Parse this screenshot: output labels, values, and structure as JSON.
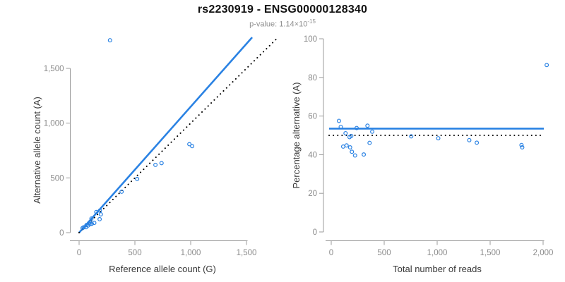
{
  "header": {
    "title": "rs2230919 - ENSG00000128340",
    "pvalue_prefix": "p-value: ",
    "pvalue_mantissa": "1.14",
    "pvalue_times": "×",
    "pvalue_base": "10",
    "pvalue_exponent": "-15"
  },
  "colors": {
    "point_blue": "#2a82e3",
    "line_blue": "#2a82e3",
    "reference_black": "#000000",
    "axis_line_gray": "#9b9b9b",
    "tick_label_gray": "#8a8a8a",
    "axis_title_gray": "#383838"
  },
  "chart_data": [
    {
      "type": "scatter",
      "name": "allele-count-scatter",
      "xlabel": "Reference allele count (G)",
      "ylabel": "Alternative allele count (A)",
      "xlim": [
        0,
        1500
      ],
      "ylim": [
        0,
        1500
      ],
      "grid": false,
      "legend": "none",
      "xticks": {
        "values": [
          0,
          500,
          1000,
          1500
        ],
        "labels": [
          "0",
          "500",
          "1,000",
          "1,500"
        ]
      },
      "yticks": {
        "values": [
          0,
          500,
          1000,
          1500
        ],
        "labels": [
          "0",
          "500",
          "1,000",
          "1,500"
        ]
      },
      "points": [
        {
          "x": 31,
          "y": 42
        },
        {
          "x": 41,
          "y": 49
        },
        {
          "x": 63,
          "y": 50
        },
        {
          "x": 66,
          "y": 69
        },
        {
          "x": 80,
          "y": 65
        },
        {
          "x": 88,
          "y": 85
        },
        {
          "x": 95,
          "y": 94
        },
        {
          "x": 100,
          "y": 78
        },
        {
          "x": 111,
          "y": 129
        },
        {
          "x": 114,
          "y": 81
        },
        {
          "x": 136,
          "y": 89
        },
        {
          "x": 154,
          "y": 188
        },
        {
          "x": 184,
          "y": 123
        },
        {
          "x": 186,
          "y": 201
        },
        {
          "x": 195,
          "y": 167
        },
        {
          "x": 277,
          "y": 1757
        },
        {
          "x": 381,
          "y": 374
        },
        {
          "x": 520,
          "y": 490
        },
        {
          "x": 684,
          "y": 619
        },
        {
          "x": 739,
          "y": 635
        },
        {
          "x": 988,
          "y": 808
        },
        {
          "x": 1013,
          "y": 790
        }
      ],
      "lines": [
        {
          "name": "fitted-ratio-line",
          "style": "solid",
          "slope": 1.15,
          "intercept": 0,
          "color": "#2a82e3"
        },
        {
          "name": "identity-line",
          "style": "dotted",
          "slope": 1,
          "intercept": 0,
          "color": "#000000"
        }
      ]
    },
    {
      "type": "scatter",
      "name": "percentage-vs-reads-scatter",
      "xlabel": "Total number of reads",
      "ylabel": "Percentage alternative (A)",
      "xlim": [
        0,
        2000
      ],
      "ylim": [
        0,
        100
      ],
      "grid": false,
      "legend": "none",
      "xticks": {
        "values": [
          0,
          500,
          1000,
          1500,
          2000
        ],
        "labels": [
          "0",
          "500",
          "1,000",
          "1,500",
          "2,000"
        ]
      },
      "yticks": {
        "values": [
          0,
          20,
          40,
          60,
          80,
          100
        ],
        "labels": [
          "0",
          "20",
          "40",
          "60",
          "80",
          "100"
        ]
      },
      "points": [
        {
          "x": 73,
          "y": 57.5
        },
        {
          "x": 90,
          "y": 54.4
        },
        {
          "x": 113,
          "y": 44.2
        },
        {
          "x": 135,
          "y": 51.1
        },
        {
          "x": 145,
          "y": 44.8
        },
        {
          "x": 173,
          "y": 49.1
        },
        {
          "x": 178,
          "y": 43.8
        },
        {
          "x": 189,
          "y": 49.7
        },
        {
          "x": 195,
          "y": 41.5
        },
        {
          "x": 225,
          "y": 39.6
        },
        {
          "x": 240,
          "y": 53.8
        },
        {
          "x": 307,
          "y": 40.1
        },
        {
          "x": 342,
          "y": 55.0
        },
        {
          "x": 362,
          "y": 46.1
        },
        {
          "x": 387,
          "y": 51.9
        },
        {
          "x": 755,
          "y": 49.5
        },
        {
          "x": 1010,
          "y": 48.5
        },
        {
          "x": 1303,
          "y": 47.5
        },
        {
          "x": 1374,
          "y": 46.2
        },
        {
          "x": 1796,
          "y": 45.0
        },
        {
          "x": 1803,
          "y": 43.8
        },
        {
          "x": 2034,
          "y": 86.4
        }
      ],
      "lines": [
        {
          "name": "mean-percentage-line",
          "style": "solid",
          "y": 53.5,
          "color": "#2a82e3"
        },
        {
          "name": "fifty-percent-line",
          "style": "dotted",
          "y": 50,
          "color": "#000000"
        }
      ]
    }
  ]
}
